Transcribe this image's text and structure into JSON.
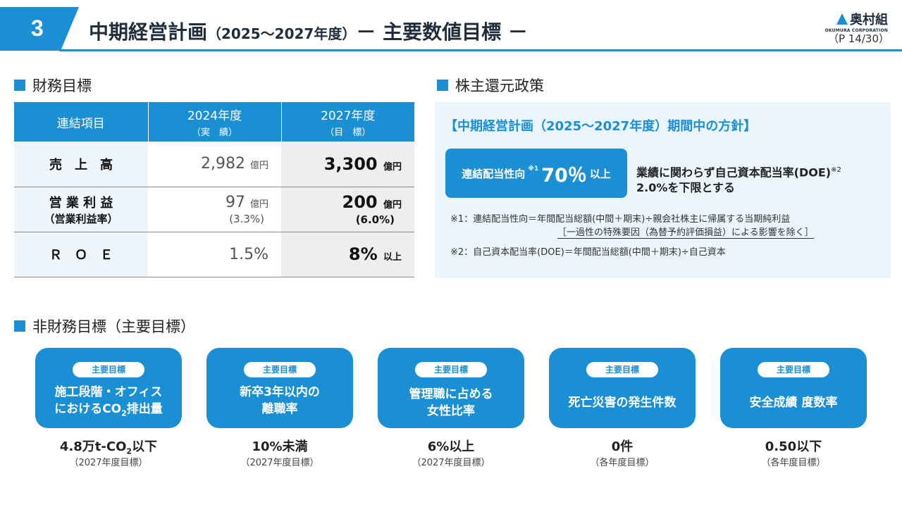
{
  "header": {
    "section_number": "3",
    "title_main": "中期経営計画",
    "title_period": "（2025～2027年度）",
    "title_suffix": "－ 主要数値目標 －",
    "logo_name": "奥村組",
    "logo_sub": "OKUMURA CORPORATION",
    "page": "（P 14/30）",
    "accent_color": "#1a8fd4"
  },
  "financial": {
    "heading": "財務目標",
    "col_item": "連結項目",
    "col_2024": "2024年度",
    "col_2024_sub": "（実　績）",
    "col_2027": "2027年度",
    "col_2027_sub": "（目　標）",
    "rows": [
      {
        "label": "売　上　高",
        "sub": "",
        "v2024": "2,982",
        "u2024": "億円",
        "s2024": "",
        "v2027": "3,300",
        "u2027": "億円",
        "s2027": ""
      },
      {
        "label": "営 業 利 益",
        "sub": "（営業利益率）",
        "v2024": "97",
        "u2024": "億円",
        "s2024": "(3.3%)",
        "v2027": "200",
        "u2027": "億円",
        "s2027": "(6.0%)"
      },
      {
        "label": "Ｒ　Ｏ　Ｅ",
        "sub": "",
        "v2024": "1.5%",
        "u2024": "",
        "s2024": "",
        "v2027": "8%",
        "u2027": "以上",
        "s2027": ""
      }
    ]
  },
  "shareholder": {
    "heading": "株主還元政策",
    "policy_head": "【中期経営計画（2025～2027年度）期間中の方針】",
    "payout_label": "連結配当性向",
    "payout_mark": "※1",
    "payout_value": "70％",
    "payout_unit": "以上",
    "doe_line1": "業績に関わらず自己資本配当率(DOE)",
    "doe_mark": "※2",
    "doe_line2": "2.0%を下限とする",
    "note1": "※1：連結配当性向＝年間配当総額(中間＋期末)÷親会社株主に帰属する当期純利益",
    "note1b": "［一過性の特殊要因（為替予約評価損益）による影響を除く］",
    "note2": "※2：自己資本配当率(DOE)＝年間配当総額(中間＋期末)÷自己資本"
  },
  "nonfinancial": {
    "heading": "非財務目標（主要目標）",
    "badge": "主要目標",
    "goals": [
      {
        "line1": "施工段階・オフィス",
        "line2a": "におけるCO",
        "line2sub": "2",
        "line2b": "排出量",
        "value_a": "4.8万t-CO",
        "value_sub": "2",
        "value_b": "以下",
        "note": "（2027年度目標）"
      },
      {
        "line1": "新卒3年以内の",
        "line2a": "離職率",
        "line2sub": "",
        "line2b": "",
        "value_a": "10%未満",
        "value_sub": "",
        "value_b": "",
        "note": "（2027年度目標）"
      },
      {
        "line1": "管理職に占める",
        "line2a": "女性比率",
        "line2sub": "",
        "line2b": "",
        "value_a": "6%以上",
        "value_sub": "",
        "value_b": "",
        "note": "（2027年度目標）"
      },
      {
        "line1": "死亡災害の発生件数",
        "line2a": "",
        "line2sub": "",
        "line2b": "",
        "value_a": "0件",
        "value_sub": "",
        "value_b": "",
        "note": "（各年度目標）"
      },
      {
        "line1": "安全成績 度数率",
        "line2a": "",
        "line2sub": "",
        "line2b": "",
        "value_a": "0.50以下",
        "value_sub": "",
        "value_b": "",
        "note": "（各年度目標）"
      }
    ]
  }
}
